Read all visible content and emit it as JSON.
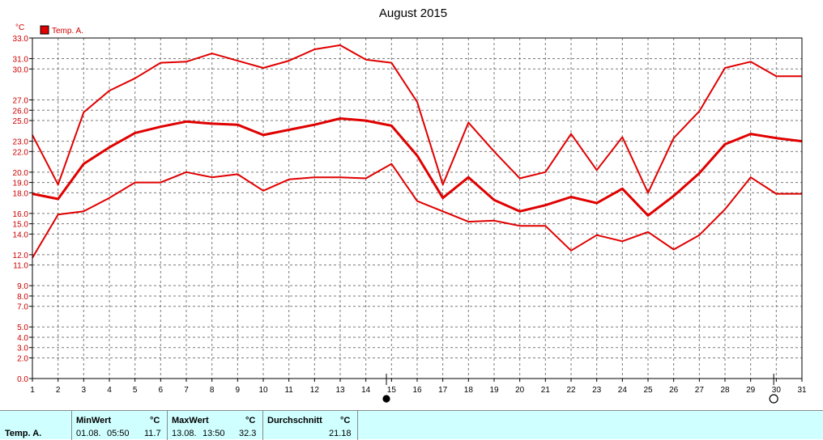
{
  "chart_data": {
    "type": "line",
    "title": "August 2015",
    "y_unit": "°C",
    "ylim": [
      0,
      33
    ],
    "y_ticks": [
      "0.0",
      "2.0",
      "3.0",
      "4.0",
      "5.0",
      "7.0",
      "8.0",
      "9.0",
      "11.0",
      "12.0",
      "14.0",
      "15.0",
      "16.0",
      "18.0",
      "19.0",
      "20.0",
      "22.0",
      "23.0",
      "25.0",
      "26.0",
      "27.0",
      "30.0",
      "31.0",
      "33.0"
    ],
    "x": [
      1,
      2,
      3,
      4,
      5,
      6,
      7,
      8,
      9,
      10,
      11,
      12,
      13,
      14,
      15,
      16,
      17,
      18,
      19,
      20,
      21,
      22,
      23,
      24,
      25,
      26,
      27,
      28,
      29,
      30,
      31
    ],
    "xlim": [
      1,
      31
    ],
    "legend": {
      "label": "Temp. A.",
      "color": "#e00000",
      "position": "top-left"
    },
    "series": [
      {
        "name": "Temp. A.",
        "role": "max",
        "values": [
          23.6,
          18.8,
          25.8,
          27.9,
          29.1,
          30.6,
          30.7,
          31.5,
          30.8,
          30.1,
          30.8,
          31.9,
          32.3,
          30.9,
          30.6,
          26.8,
          18.8,
          24.8,
          22.0,
          19.4,
          20.0,
          23.7,
          20.2,
          23.4,
          18.0,
          23.3,
          25.9,
          30.1,
          30.7,
          29.3,
          29.3
        ]
      },
      {
        "name": "Temp. A.",
        "role": "avg",
        "values": [
          17.9,
          17.4,
          20.8,
          22.4,
          23.8,
          24.4,
          24.9,
          24.7,
          24.6,
          23.6,
          24.1,
          24.6,
          25.2,
          25.0,
          24.5,
          21.6,
          17.5,
          19.5,
          17.3,
          16.2,
          16.8,
          17.6,
          17.0,
          18.4,
          15.8,
          17.7,
          19.9,
          22.7,
          23.7,
          23.3,
          23.0
        ]
      },
      {
        "name": "Temp. A.",
        "role": "min",
        "values": [
          11.7,
          15.9,
          16.2,
          17.5,
          19.0,
          19.0,
          20.0,
          19.5,
          19.8,
          18.2,
          19.3,
          19.5,
          19.5,
          19.4,
          20.8,
          17.2,
          16.2,
          15.2,
          15.3,
          14.8,
          14.8,
          12.4,
          13.9,
          13.3,
          14.2,
          12.5,
          13.9,
          16.4,
          19.5,
          17.9,
          17.9
        ]
      }
    ],
    "grid": true,
    "moon_phases": [
      {
        "day": 14.8,
        "phase": "new-moon"
      },
      {
        "day": 29.9,
        "phase": "full-moon"
      }
    ]
  },
  "summary": {
    "series_label": "Temp. A.",
    "min": {
      "header": "MinWert",
      "unit": "°C",
      "date": "01.08.",
      "time": "05:50",
      "value": "11.7"
    },
    "max": {
      "header": "MaxWert",
      "unit": "°C",
      "date": "13.08.",
      "time": "13:50",
      "value": "32.3"
    },
    "avg": {
      "header": "Durchschnitt",
      "unit": "°C",
      "value": "21.18"
    }
  }
}
